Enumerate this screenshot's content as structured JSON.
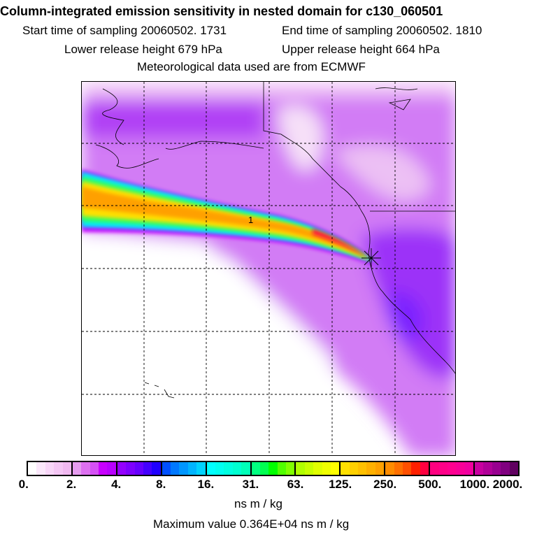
{
  "header": {
    "title": "Column-integrated emission sensitivity in nested domain for c130_060501",
    "start_time": "Start time of sampling 20060502.  1731",
    "end_time": "End time of sampling 20060502.  1810",
    "lower_release": "Lower release height  679 hPa",
    "upper_release": "Upper release height  664 hPa",
    "met_data": "Meteorological data used are from ECMWF"
  },
  "map": {
    "plume_label": "1",
    "release_marker": "star-icon"
  },
  "colorbar": {
    "tick_labels": [
      "0.",
      "2.",
      "4.",
      "8.",
      "16.",
      "31.",
      "63.",
      "125.",
      "250.",
      "500.",
      "1000.",
      "2000."
    ],
    "segments": [
      [
        "#ffffff",
        "#fbe8fb",
        "#f8d6f8",
        "#f4c6f4",
        "#f0b8f0"
      ],
      [
        "#e69cf0",
        "#dd70f0",
        "#d550f5",
        "#c800ff",
        "#b800ff"
      ],
      [
        "#9400ff",
        "#7d00ff",
        "#6600ff",
        "#4400ff",
        "#2000ff"
      ],
      [
        "#0050ff",
        "#0078ff",
        "#0096ff",
        "#00b4ff",
        "#00d2ff"
      ],
      [
        "#00ffff",
        "#00fff0",
        "#00ffe0",
        "#00ffd0",
        "#00ffb8"
      ],
      [
        "#00ff80",
        "#00ff50",
        "#00ff00",
        "#50ff00",
        "#80ff00"
      ],
      [
        "#b0ff00",
        "#c8ff00",
        "#e0ff00",
        "#f0ff00",
        "#ffff00"
      ],
      [
        "#ffe000",
        "#ffd000",
        "#ffc000",
        "#ffb000",
        "#ffa000"
      ],
      [
        "#ff8c00",
        "#ff7000",
        "#ff5000",
        "#ff2000",
        "#ff0040"
      ],
      [
        "#ff0080",
        "#ff0088",
        "#ff0090",
        "#f80098",
        "#f000a0"
      ],
      [
        "#c800a0",
        "#b00098",
        "#980090",
        "#800080",
        "#600060"
      ]
    ],
    "units": "ns m / kg"
  },
  "footer": {
    "max_value": "Maximum value  0.364E+04 ns m / kg"
  }
}
